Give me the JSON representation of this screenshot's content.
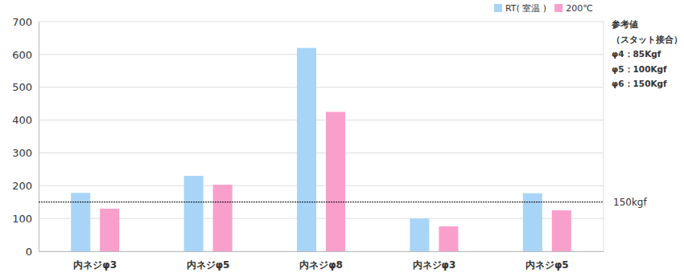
{
  "chart_data": {
    "type": "bar",
    "categories": [
      "内ネジφ3",
      "内ネジφ5",
      "内ネジφ8",
      "内ネジφ3",
      "内ネジφ5"
    ],
    "series": [
      {
        "name": "RT( 室温 )",
        "color": "#a8d4f7",
        "values": [
          178,
          230,
          620,
          100,
          177
        ]
      },
      {
        "name": "200℃",
        "color": "#f99fcb",
        "values": [
          130,
          203,
          425,
          76,
          125
        ]
      }
    ],
    "ylim": [
      0,
      700
    ],
    "yticks": [
      0,
      100,
      200,
      300,
      400,
      500,
      600,
      700
    ],
    "grid": true,
    "legend": "top-right",
    "reference_line": {
      "value": 150,
      "label": "150kgf"
    },
    "notes": [
      "参考値",
      "（スタット接合）",
      "φ4：85Kgf",
      "φ5：100Kgf",
      "φ6：150Kgf"
    ]
  }
}
